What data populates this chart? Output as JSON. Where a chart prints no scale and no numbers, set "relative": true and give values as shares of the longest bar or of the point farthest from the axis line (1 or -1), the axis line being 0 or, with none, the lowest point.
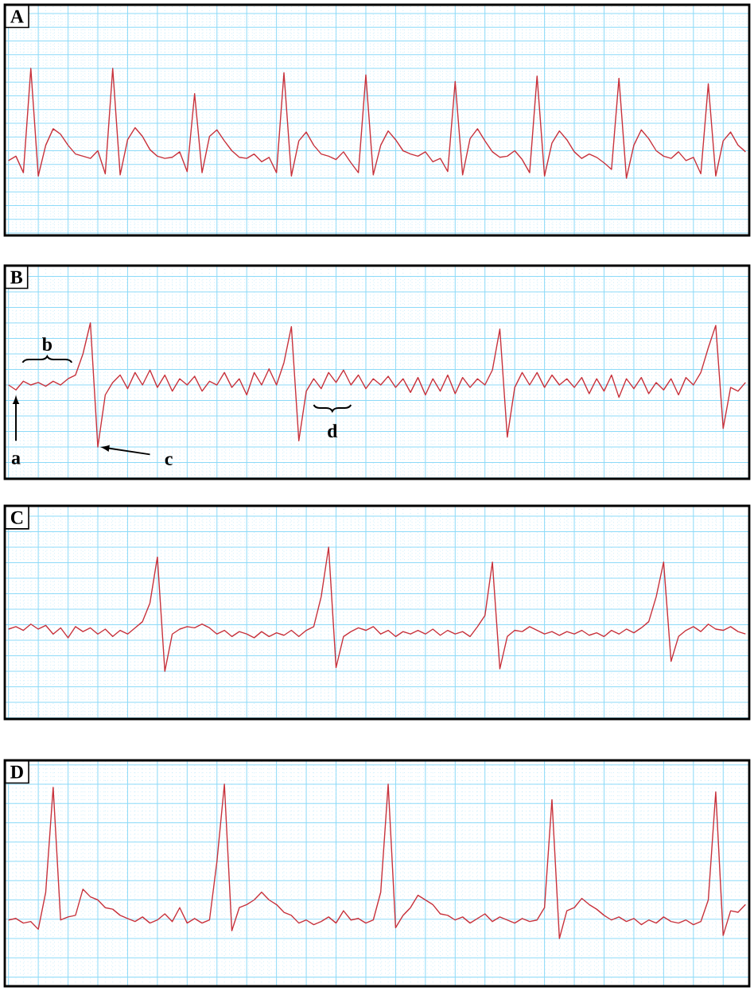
{
  "chart_data": [
    {
      "type": "line",
      "title": "A",
      "relative": true,
      "grid": true,
      "tick_labels": false,
      "categories": [
        null,
        null,
        null,
        null,
        null,
        null,
        null,
        null,
        null,
        null,
        null,
        null,
        null,
        null,
        null,
        null,
        null,
        null,
        null,
        null,
        null,
        null,
        null,
        null,
        null,
        null,
        null,
        null,
        null,
        null,
        null,
        null,
        null,
        null,
        null,
        null,
        null,
        null,
        null,
        null,
        null,
        null,
        null,
        null,
        null,
        null,
        null,
        null,
        null,
        null,
        null,
        null,
        null,
        null,
        null,
        null,
        null,
        null,
        null,
        null,
        null,
        null,
        null,
        null,
        null,
        null,
        null,
        null,
        null,
        null,
        null,
        null,
        null,
        null,
        null,
        null,
        null,
        null,
        null,
        null,
        null,
        null,
        null,
        null,
        null,
        null,
        null,
        null,
        null,
        null,
        null,
        null,
        null,
        null,
        null,
        null,
        null,
        null,
        null,
        null
      ],
      "series": [
        {
          "color": "#c8323c",
          "values": [
            0.16,
            0.2,
            0.05,
            1.0,
            0.02,
            0.3,
            0.45,
            0.4,
            0.3,
            0.22,
            0.2,
            0.18,
            0.25,
            0.04,
            1.0,
            0.03,
            0.35,
            0.46,
            0.38,
            0.26,
            0.2,
            0.18,
            0.19,
            0.24,
            0.06,
            0.77,
            0.05,
            0.38,
            0.44,
            0.34,
            0.25,
            0.19,
            0.18,
            0.22,
            0.15,
            0.19,
            0.05,
            0.96,
            0.02,
            0.34,
            0.42,
            0.3,
            0.22,
            0.2,
            0.17,
            0.24,
            0.14,
            0.05,
            0.94,
            0.03,
            0.3,
            0.43,
            0.35,
            0.25,
            0.22,
            0.2,
            0.24,
            0.15,
            0.18,
            0.06,
            0.88,
            0.03,
            0.36,
            0.45,
            0.34,
            0.24,
            0.19,
            0.2,
            0.25,
            0.17,
            0.05,
            0.93,
            0.02,
            0.32,
            0.43,
            0.35,
            0.24,
            0.18,
            0.22,
            0.19,
            0.14,
            0.08,
            0.91,
            0,
            0.3,
            0.44,
            0.36,
            0.25,
            0.2,
            0.18,
            0.24,
            0.16,
            0.19,
            0.04,
            0.86,
            0.02,
            0.34,
            0.42,
            0.3,
            0.24
          ]
        }
      ]
    },
    {
      "type": "line",
      "title": "B",
      "relative": true,
      "grid": true,
      "tick_labels": false,
      "annotations": [
        "a",
        "b",
        "c",
        "d"
      ],
      "categories": [
        null,
        null,
        null,
        null,
        null,
        null,
        null,
        null,
        null,
        null,
        null,
        null,
        null,
        null,
        null,
        null,
        null,
        null,
        null,
        null,
        null,
        null,
        null,
        null,
        null,
        null,
        null,
        null,
        null,
        null,
        null,
        null,
        null,
        null,
        null,
        null,
        null,
        null,
        null,
        null,
        null,
        null,
        null,
        null,
        null,
        null,
        null,
        null,
        null,
        null,
        null,
        null,
        null,
        null,
        null,
        null,
        null,
        null,
        null,
        null,
        null,
        null,
        null,
        null,
        null,
        null,
        null,
        null,
        null,
        null,
        null,
        null,
        null,
        null,
        null,
        null,
        null,
        null,
        null,
        null,
        null,
        null,
        null,
        null,
        null,
        null,
        null,
        null,
        null,
        null,
        null,
        null,
        null,
        null,
        null,
        null,
        null,
        null,
        null,
        null
      ],
      "series": [
        {
          "color": "#c8323c",
          "values": [
            0.5,
            0.46,
            0.53,
            0.5,
            0.52,
            0.49,
            0.53,
            0.5,
            0.55,
            0.58,
            0.75,
            1.0,
            0,
            0.42,
            0.52,
            0.58,
            0.47,
            0.6,
            0.5,
            0.62,
            0.48,
            0.58,
            0.45,
            0.55,
            0.5,
            0.57,
            0.45,
            0.53,
            0.5,
            0.6,
            0.48,
            0.55,
            0.42,
            0.6,
            0.5,
            0.63,
            0.5,
            0.68,
            0.97,
            0.05,
            0.45,
            0.55,
            0.47,
            0.6,
            0.52,
            0.62,
            0.5,
            0.58,
            0.47,
            0.55,
            0.5,
            0.57,
            0.48,
            0.55,
            0.44,
            0.56,
            0.42,
            0.55,
            0.45,
            0.58,
            0.43,
            0.56,
            0.48,
            0.55,
            0.5,
            0.62,
            0.95,
            0.08,
            0.48,
            0.6,
            0.5,
            0.6,
            0.48,
            0.58,
            0.5,
            0.55,
            0.48,
            0.56,
            0.43,
            0.55,
            0.45,
            0.58,
            0.4,
            0.55,
            0.47,
            0.56,
            0.43,
            0.52,
            0.46,
            0.55,
            0.42,
            0.56,
            0.5,
            0.6,
            0.8,
            0.98,
            0.15,
            0.48,
            0.45,
            0.52
          ]
        }
      ]
    },
    {
      "type": "line",
      "title": "C",
      "relative": true,
      "grid": true,
      "tick_labels": false,
      "categories": [
        null,
        null,
        null,
        null,
        null,
        null,
        null,
        null,
        null,
        null,
        null,
        null,
        null,
        null,
        null,
        null,
        null,
        null,
        null,
        null,
        null,
        null,
        null,
        null,
        null,
        null,
        null,
        null,
        null,
        null,
        null,
        null,
        null,
        null,
        null,
        null,
        null,
        null,
        null,
        null,
        null,
        null,
        null,
        null,
        null,
        null,
        null,
        null,
        null,
        null,
        null,
        null,
        null,
        null,
        null,
        null,
        null,
        null,
        null,
        null,
        null,
        null,
        null,
        null,
        null,
        null,
        null,
        null,
        null,
        null,
        null,
        null,
        null,
        null,
        null,
        null,
        null,
        null,
        null,
        null,
        null,
        null,
        null,
        null,
        null,
        null,
        null,
        null,
        null,
        null,
        null,
        null,
        null,
        null,
        null,
        null,
        null,
        null,
        null,
        null
      ],
      "series": [
        {
          "color": "#c8323c",
          "values": [
            0.34,
            0.36,
            0.33,
            0.38,
            0.34,
            0.37,
            0.3,
            0.35,
            0.27,
            0.36,
            0.32,
            0.35,
            0.3,
            0.34,
            0.28,
            0.33,
            0.3,
            0.35,
            0.4,
            0.55,
            0.92,
            0,
            0.3,
            0.34,
            0.36,
            0.35,
            0.38,
            0.35,
            0.3,
            0.33,
            0.28,
            0.32,
            0.3,
            0.27,
            0.32,
            0.28,
            0.31,
            0.29,
            0.33,
            0.28,
            0.33,
            0.36,
            0.6,
            1.0,
            0.03,
            0.28,
            0.32,
            0.35,
            0.33,
            0.36,
            0.3,
            0.33,
            0.28,
            0.32,
            0.3,
            0.33,
            0.3,
            0.34,
            0.29,
            0.33,
            0.3,
            0.32,
            0.28,
            0.36,
            0.45,
            0.88,
            0.02,
            0.28,
            0.33,
            0.32,
            0.36,
            0.33,
            0.3,
            0.32,
            0.29,
            0.32,
            0.3,
            0.33,
            0.29,
            0.31,
            0.28,
            0.33,
            0.3,
            0.34,
            0.31,
            0.35,
            0.4,
            0.6,
            0.88,
            0.08,
            0.28,
            0.33,
            0.36,
            0.32,
            0.38,
            0.34,
            0.33,
            0.36,
            0.32,
            0.3
          ]
        }
      ]
    },
    {
      "type": "line",
      "title": "D",
      "relative": true,
      "grid": true,
      "tick_labels": false,
      "categories": [
        null,
        null,
        null,
        null,
        null,
        null,
        null,
        null,
        null,
        null,
        null,
        null,
        null,
        null,
        null,
        null,
        null,
        null,
        null,
        null,
        null,
        null,
        null,
        null,
        null,
        null,
        null,
        null,
        null,
        null,
        null,
        null,
        null,
        null,
        null,
        null,
        null,
        null,
        null,
        null,
        null,
        null,
        null,
        null,
        null,
        null,
        null,
        null,
        null,
        null,
        null,
        null,
        null,
        null,
        null,
        null,
        null,
        null,
        null,
        null,
        null,
        null,
        null,
        null,
        null,
        null,
        null,
        null,
        null,
        null,
        null,
        null,
        null,
        null,
        null,
        null,
        null,
        null,
        null,
        null,
        null,
        null,
        null,
        null,
        null,
        null,
        null,
        null,
        null,
        null,
        null,
        null,
        null,
        null,
        null,
        null,
        null,
        null,
        null,
        null
      ],
      "series": [
        {
          "color": "#c8323c",
          "values": [
            0.12,
            0.13,
            0.1,
            0.11,
            0.06,
            0.3,
            0.98,
            0.12,
            0.14,
            0.15,
            0.32,
            0.27,
            0.25,
            0.2,
            0.19,
            0.15,
            0.13,
            0.11,
            0.14,
            0.1,
            0.12,
            0.16,
            0.11,
            0.2,
            0.1,
            0.13,
            0.1,
            0.12,
            0.5,
            1.0,
            0.05,
            0.2,
            0.22,
            0.25,
            0.3,
            0.25,
            0.22,
            0.17,
            0.15,
            0.1,
            0.12,
            0.09,
            0.11,
            0.14,
            0.1,
            0.18,
            0.12,
            0.13,
            0.1,
            0.12,
            0.3,
            1.0,
            0.07,
            0.15,
            0.2,
            0.28,
            0.25,
            0.22,
            0.16,
            0.15,
            0.12,
            0.14,
            0.1,
            0.13,
            0.16,
            0.11,
            0.14,
            0.12,
            0.1,
            0.13,
            0.11,
            0.12,
            0.2,
            0.9,
            0,
            0.18,
            0.2,
            0.26,
            0.22,
            0.19,
            0.15,
            0.12,
            0.14,
            0.11,
            0.13,
            0.09,
            0.12,
            0.1,
            0.14,
            0.11,
            0.1,
            0.12,
            0.09,
            0.11,
            0.25,
            0.95,
            0.02,
            0.18,
            0.17,
            0.22
          ]
        }
      ]
    }
  ]
}
